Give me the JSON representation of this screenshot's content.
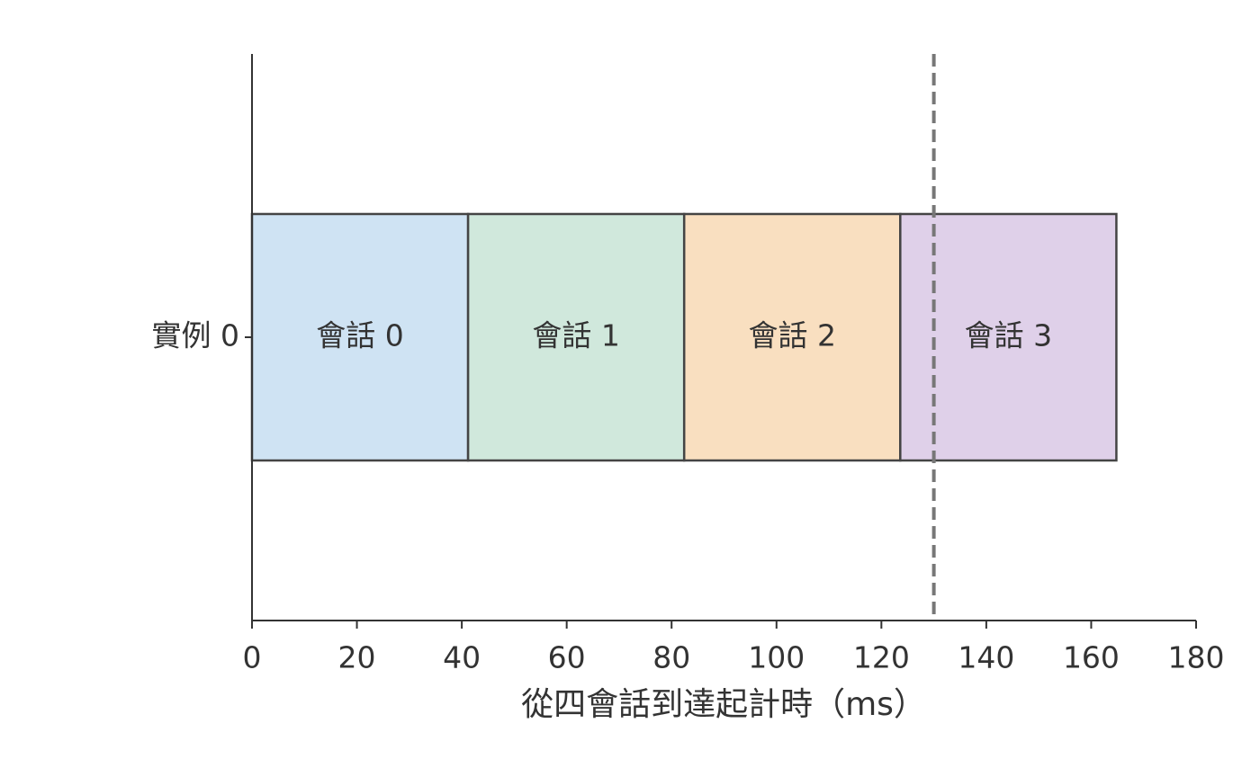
{
  "chart_data": {
    "type": "bar",
    "orientation": "horizontal",
    "stacked": true,
    "categories": [
      "實例 0"
    ],
    "series": [
      {
        "name": "會話 0",
        "color": "#cfe3f3",
        "values": [
          41.2
        ]
      },
      {
        "name": "會話 1",
        "color": "#d0e8dc",
        "values": [
          41.2
        ]
      },
      {
        "name": "會話 2",
        "color": "#f9dfc0",
        "values": [
          41.2
        ]
      },
      {
        "name": "會話 3",
        "color": "#dfd0e9",
        "values": [
          41.2
        ]
      }
    ],
    "edge_color": "#444444",
    "xlabel": "從四會話到達起計時（ms）",
    "xlim": [
      0,
      180
    ],
    "xticks": [
      0,
      20,
      40,
      60,
      80,
      100,
      120,
      140,
      160,
      180
    ],
    "vline": {
      "value": 130,
      "color": "#777777",
      "style": "dashed"
    }
  }
}
